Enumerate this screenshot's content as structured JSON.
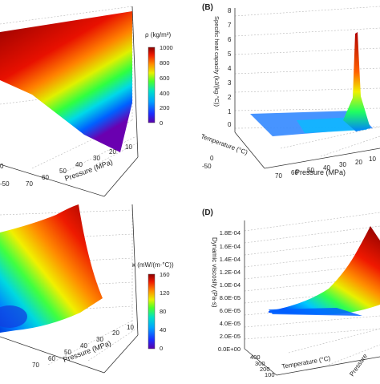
{
  "chart_data": [
    {
      "panel": "A",
      "type": "surface",
      "xlabel": "Pressure (MPa)",
      "x_ticks": [
        "70",
        "60",
        "50",
        "40",
        "30",
        "20",
        "10"
      ],
      "y_ticks": [
        "-50",
        "0"
      ],
      "zlabel": "",
      "colorbar": {
        "label": "ρ (kg/m³)",
        "min": 0,
        "max": 1000,
        "ticks": [
          "0",
          "200",
          "400",
          "600",
          "800",
          "1000"
        ]
      },
      "description_values": {
        "z_range": [
          0,
          1000
        ]
      }
    },
    {
      "panel": "B",
      "type": "surface",
      "xlabel": "Pressure (MPa)",
      "ylabel": "Temperature (°C)",
      "zlabel": "Specific heat capacity (kJ/(kg·°C))",
      "x_ticks": [
        "70",
        "60",
        "50",
        "40",
        "30",
        "20",
        "10"
      ],
      "y_ticks": [
        "-50",
        "0"
      ],
      "z_ticks": [
        "0",
        "1",
        "2",
        "3",
        "4",
        "5",
        "6",
        "7",
        "8"
      ],
      "z_range": [
        0,
        8
      ],
      "peak": {
        "x": 10,
        "z": 7.5
      }
    },
    {
      "panel": "C",
      "type": "surface",
      "xlabel": "Pressure (MPa)",
      "x_ticks": [
        "70",
        "60",
        "50",
        "40",
        "30",
        "20",
        "10"
      ],
      "colorbar": {
        "label": "κ (mW/(m·°C))",
        "min": 0,
        "max": 160,
        "ticks": [
          "0",
          "40",
          "80",
          "120",
          "160"
        ]
      }
    },
    {
      "panel": "D",
      "type": "surface",
      "xlabel": "Pressure",
      "ylabel": "Temperature (°C)",
      "zlabel": "Dynamic viscosity (Pa·s)",
      "z_ticks": [
        "0.0E+00",
        "2.0E-05",
        "4.0E-05",
        "6.0E-05",
        "8.0E-05",
        "1.0E-04",
        "1.2E-04",
        "1.4E-04",
        "1.6E-04",
        "1.8E-04"
      ],
      "y_ticks": [
        "400",
        "300",
        "200",
        "100",
        "0",
        "-50"
      ],
      "z_range": [
        0,
        0.00018
      ]
    }
  ],
  "labels": {
    "b": "(B)",
    "d": "(D)"
  }
}
